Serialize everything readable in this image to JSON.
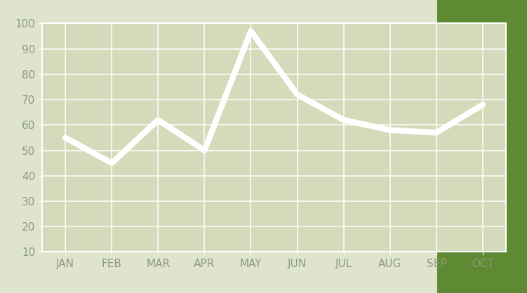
{
  "chart_data": {
    "type": "line",
    "categories": [
      "JAN",
      "FEB",
      "MAR",
      "APR",
      "MAY",
      "JUN",
      "JUL",
      "AUG",
      "SEP",
      "OCT"
    ],
    "values": [
      55,
      45,
      62,
      50,
      97,
      72,
      62,
      58,
      57,
      68
    ],
    "color": "#ffffff",
    "ylim": [
      10,
      100
    ],
    "yticks": [
      10,
      20,
      30,
      40,
      50,
      60,
      70,
      80,
      90,
      100
    ],
    "grid": true
  }
}
